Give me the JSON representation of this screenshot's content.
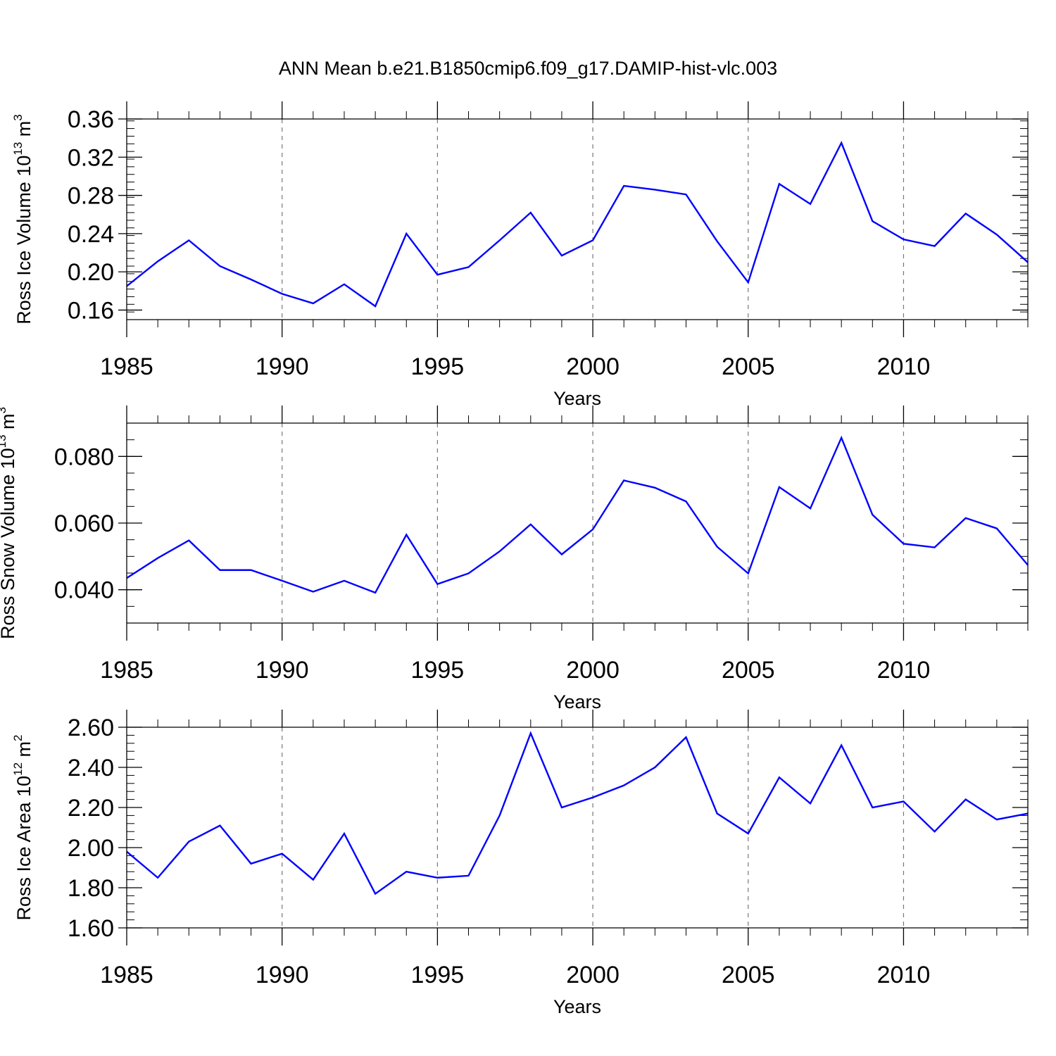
{
  "chart_data": [
    {
      "type": "line",
      "title": "ANN Mean b.e21.B1850cmip6.f09_g17.DAMIP-hist-vlc.003",
      "xlabel": "Years",
      "ylabel": "Ross Ice Volume 10",
      "ylabel_exp": "13",
      "ylabel_unit": " m",
      "ylabel_unit_exp": "3",
      "xlim": [
        1985,
        2014
      ],
      "ylim": [
        0.15,
        0.36
      ],
      "x_ticks": [
        1985,
        1990,
        1995,
        2000,
        2005,
        2010
      ],
      "y_ticks": [
        "0.16",
        "0.20",
        "0.24",
        "0.28",
        "0.32",
        "0.36"
      ],
      "y_tick_values": [
        0.16,
        0.2,
        0.24,
        0.28,
        0.32,
        0.36
      ],
      "y_minor_step": 0.008,
      "grid": "vertical dashed at major x ticks",
      "series": [
        {
          "name": "Ross Ice Volume",
          "color": "#0000ff",
          "x": [
            1985,
            1986,
            1987,
            1988,
            1989,
            1990,
            1991,
            1992,
            1993,
            1994,
            1995,
            1996,
            1997,
            1998,
            1999,
            2000,
            2001,
            2002,
            2003,
            2004,
            2005,
            2006,
            2007,
            2008,
            2009,
            2010,
            2011,
            2012,
            2013,
            2014
          ],
          "values": [
            0.185,
            0.211,
            0.233,
            0.206,
            0.192,
            0.177,
            0.167,
            0.187,
            0.164,
            0.24,
            0.197,
            0.205,
            0.233,
            0.262,
            0.217,
            0.233,
            0.29,
            0.286,
            0.281,
            0.232,
            0.189,
            0.292,
            0.271,
            0.335,
            0.253,
            0.234,
            0.227,
            0.261,
            0.239,
            0.21
          ]
        }
      ]
    },
    {
      "type": "line",
      "title": "",
      "xlabel": "Years",
      "ylabel": "Ross Snow Volume 10",
      "ylabel_exp": "13",
      "ylabel_unit": " m",
      "ylabel_unit_exp": "3",
      "xlim": [
        1985,
        2014
      ],
      "ylim": [
        0.03,
        0.09
      ],
      "x_ticks": [
        1985,
        1990,
        1995,
        2000,
        2005,
        2010
      ],
      "y_ticks": [
        "0.040",
        "0.060",
        "0.080"
      ],
      "y_tick_values": [
        0.04,
        0.06,
        0.08
      ],
      "y_minor_step": 0.005,
      "grid": "vertical dashed at major x ticks",
      "series": [
        {
          "name": "Ross Snow Volume",
          "color": "#0000ff",
          "x": [
            1985,
            1986,
            1987,
            1988,
            1989,
            1990,
            1991,
            1992,
            1993,
            1994,
            1995,
            1996,
            1997,
            1998,
            1999,
            2000,
            2001,
            2002,
            2003,
            2004,
            2005,
            2006,
            2007,
            2008,
            2009,
            2010,
            2011,
            2012,
            2013,
            2014
          ],
          "values": [
            0.0435,
            0.0495,
            0.0548,
            0.0459,
            0.0459,
            0.0427,
            0.0394,
            0.0427,
            0.0391,
            0.0565,
            0.0417,
            0.0449,
            0.0515,
            0.0596,
            0.0506,
            0.0581,
            0.0728,
            0.0706,
            0.0665,
            0.0529,
            0.0449,
            0.0708,
            0.0644,
            0.0856,
            0.0625,
            0.0538,
            0.0527,
            0.0615,
            0.0584,
            0.0474
          ]
        }
      ]
    },
    {
      "type": "line",
      "title": "",
      "xlabel": "Years",
      "ylabel": "Ross Ice Area 10",
      "ylabel_exp": "12",
      "ylabel_unit": " m",
      "ylabel_unit_exp": "2",
      "xlim": [
        1985,
        2014
      ],
      "ylim": [
        1.6,
        2.6
      ],
      "x_ticks": [
        1985,
        1990,
        1995,
        2000,
        2005,
        2010
      ],
      "y_ticks": [
        "1.60",
        "1.80",
        "2.00",
        "2.20",
        "2.40",
        "2.60"
      ],
      "y_tick_values": [
        1.6,
        1.8,
        2.0,
        2.2,
        2.4,
        2.6
      ],
      "y_minor_step": 0.04,
      "grid": "vertical dashed at major x ticks",
      "series": [
        {
          "name": "Ross Ice Area",
          "color": "#0000ff",
          "x": [
            1985,
            1986,
            1987,
            1988,
            1989,
            1990,
            1991,
            1992,
            1993,
            1994,
            1995,
            1996,
            1997,
            1998,
            1999,
            2000,
            2001,
            2002,
            2003,
            2004,
            2005,
            2006,
            2007,
            2008,
            2009,
            2010,
            2011,
            2012,
            2013,
            2014
          ],
          "values": [
            1.98,
            1.85,
            2.03,
            2.11,
            1.92,
            1.97,
            1.84,
            2.07,
            1.77,
            1.88,
            1.85,
            1.86,
            2.16,
            2.57,
            2.2,
            2.25,
            2.31,
            2.4,
            2.55,
            2.17,
            2.07,
            2.35,
            2.22,
            2.51,
            2.2,
            2.23,
            2.08,
            2.24,
            2.14,
            2.17
          ]
        }
      ]
    }
  ]
}
